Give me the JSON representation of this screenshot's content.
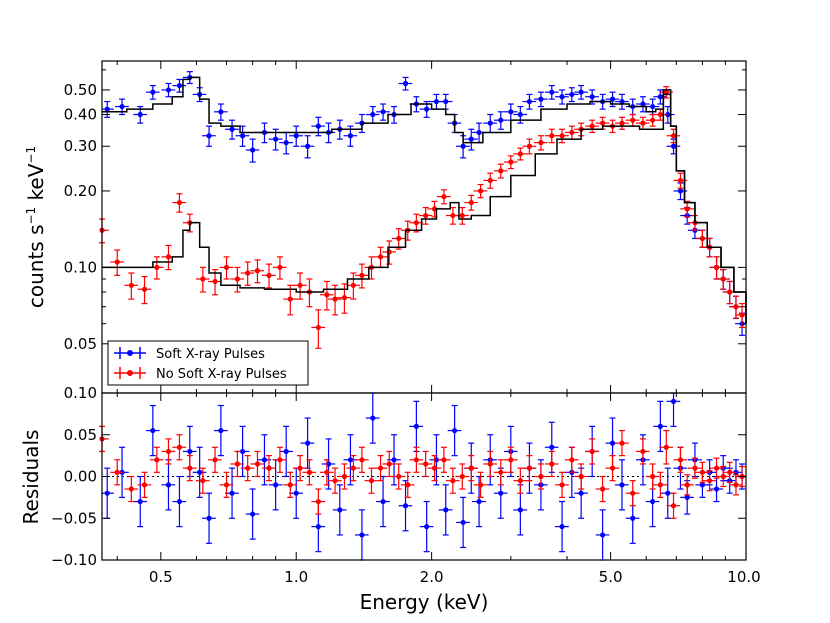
{
  "chart_data": [
    {
      "type": "scatter",
      "panel": "spectrum",
      "title": "",
      "xlabel": "",
      "ylabel": "counts s",
      "ylabel_unit": "keV",
      "ylabel_exponent": "−1",
      "xscale": "log",
      "yscale": "log",
      "xlim": [
        0.37,
        10.0
      ],
      "ylim": [
        0.032,
        0.65
      ],
      "yticks": [
        0.05,
        0.1,
        0.2,
        0.3,
        0.4,
        0.5
      ],
      "ytick_labels": [
        "0.05",
        "0.10",
        "0.20",
        "0.30",
        "0.40",
        "0.50"
      ],
      "legend_position": "lower-left",
      "legend": [
        "Soft X-ray Pulses",
        "No Soft X-ray Pulses"
      ],
      "series": [
        {
          "name": "Soft X-ray Pulses",
          "color": "#0000ff",
          "x": [
            0.38,
            0.41,
            0.45,
            0.48,
            0.52,
            0.55,
            0.58,
            0.61,
            0.64,
            0.68,
            0.72,
            0.76,
            0.8,
            0.85,
            0.9,
            0.95,
            1.0,
            1.06,
            1.12,
            1.18,
            1.25,
            1.32,
            1.4,
            1.48,
            1.56,
            1.65,
            1.75,
            1.85,
            1.95,
            2.05,
            2.15,
            2.25,
            2.35,
            2.45,
            2.55,
            2.7,
            2.85,
            3.0,
            3.15,
            3.3,
            3.5,
            3.7,
            3.9,
            4.1,
            4.3,
            4.55,
            4.8,
            5.05,
            5.3,
            5.6,
            5.9,
            6.2,
            6.45,
            6.7,
            6.9,
            7.15,
            7.4,
            7.7,
            8.0,
            8.3,
            8.6,
            8.9,
            9.2,
            9.5,
            9.8
          ],
          "y": [
            0.42,
            0.43,
            0.4,
            0.49,
            0.5,
            0.52,
            0.56,
            0.48,
            0.33,
            0.41,
            0.35,
            0.33,
            0.29,
            0.34,
            0.32,
            0.31,
            0.33,
            0.3,
            0.36,
            0.34,
            0.35,
            0.33,
            0.37,
            0.4,
            0.41,
            0.4,
            0.53,
            0.44,
            0.42,
            0.45,
            0.45,
            0.37,
            0.3,
            0.32,
            0.34,
            0.37,
            0.38,
            0.41,
            0.4,
            0.45,
            0.46,
            0.49,
            0.47,
            0.48,
            0.49,
            0.47,
            0.45,
            0.46,
            0.45,
            0.43,
            0.44,
            0.43,
            0.47,
            0.4,
            0.3,
            0.2,
            0.16,
            0.14,
            0.13,
            0.12,
            0.1,
            0.09,
            0.08,
            0.07,
            0.06
          ],
          "yerr": [
            0.03,
            0.03,
            0.03,
            0.03,
            0.03,
            0.03,
            0.03,
            0.03,
            0.03,
            0.03,
            0.03,
            0.03,
            0.03,
            0.03,
            0.03,
            0.03,
            0.03,
            0.03,
            0.03,
            0.03,
            0.03,
            0.03,
            0.03,
            0.03,
            0.03,
            0.03,
            0.03,
            0.03,
            0.03,
            0.03,
            0.03,
            0.03,
            0.03,
            0.03,
            0.03,
            0.03,
            0.03,
            0.03,
            0.03,
            0.03,
            0.03,
            0.03,
            0.03,
            0.03,
            0.03,
            0.03,
            0.03,
            0.03,
            0.03,
            0.03,
            0.03,
            0.03,
            0.03,
            0.03,
            0.02,
            0.015,
            0.012,
            0.01,
            0.01,
            0.01,
            0.01,
            0.008,
            0.008,
            0.007,
            0.006
          ]
        },
        {
          "name": "No Soft X-ray Pulses",
          "color": "#ff0000",
          "x": [
            0.37,
            0.4,
            0.43,
            0.46,
            0.49,
            0.52,
            0.55,
            0.58,
            0.62,
            0.66,
            0.7,
            0.74,
            0.78,
            0.82,
            0.87,
            0.92,
            0.97,
            1.02,
            1.07,
            1.12,
            1.17,
            1.22,
            1.28,
            1.34,
            1.4,
            1.47,
            1.54,
            1.61,
            1.69,
            1.77,
            1.85,
            1.94,
            2.03,
            2.13,
            2.23,
            2.34,
            2.45,
            2.57,
            2.7,
            2.85,
            3.0,
            3.15,
            3.3,
            3.5,
            3.7,
            3.9,
            4.1,
            4.3,
            4.55,
            4.8,
            5.05,
            5.3,
            5.6,
            5.9,
            6.2,
            6.45,
            6.65,
            6.9,
            7.15,
            7.4,
            7.7,
            8.0,
            8.3,
            8.6,
            8.9,
            9.2,
            9.5,
            9.8
          ],
          "y": [
            0.14,
            0.105,
            0.085,
            0.082,
            0.1,
            0.11,
            0.18,
            0.15,
            0.09,
            0.088,
            0.1,
            0.09,
            0.095,
            0.097,
            0.093,
            0.1,
            0.075,
            0.085,
            0.08,
            0.058,
            0.078,
            0.075,
            0.076,
            0.085,
            0.093,
            0.1,
            0.11,
            0.115,
            0.13,
            0.14,
            0.15,
            0.16,
            0.17,
            0.19,
            0.16,
            0.16,
            0.18,
            0.2,
            0.22,
            0.24,
            0.26,
            0.28,
            0.3,
            0.31,
            0.33,
            0.33,
            0.34,
            0.35,
            0.36,
            0.37,
            0.36,
            0.37,
            0.38,
            0.37,
            0.38,
            0.4,
            0.49,
            0.33,
            0.22,
            0.17,
            0.15,
            0.13,
            0.12,
            0.1,
            0.09,
            0.08,
            0.07,
            0.065
          ],
          "yerr": [
            0.015,
            0.012,
            0.01,
            0.01,
            0.01,
            0.012,
            0.015,
            0.012,
            0.01,
            0.01,
            0.01,
            0.01,
            0.01,
            0.01,
            0.01,
            0.01,
            0.01,
            0.01,
            0.01,
            0.01,
            0.01,
            0.01,
            0.01,
            0.01,
            0.01,
            0.01,
            0.01,
            0.012,
            0.012,
            0.012,
            0.012,
            0.012,
            0.012,
            0.012,
            0.012,
            0.012,
            0.012,
            0.012,
            0.015,
            0.015,
            0.015,
            0.015,
            0.02,
            0.02,
            0.02,
            0.02,
            0.02,
            0.02,
            0.02,
            0.02,
            0.02,
            0.02,
            0.02,
            0.02,
            0.02,
            0.02,
            0.025,
            0.02,
            0.015,
            0.012,
            0.01,
            0.01,
            0.01,
            0.01,
            0.008,
            0.008,
            0.007,
            0.007
          ]
        },
        {
          "name": "model (Soft X-ray Pulses)",
          "color": "#000000",
          "style": "line",
          "x": [
            0.37,
            0.42,
            0.48,
            0.53,
            0.56,
            0.58,
            0.61,
            0.64,
            0.68,
            0.75,
            0.85,
            1.0,
            1.2,
            1.4,
            1.6,
            1.8,
            2.0,
            2.15,
            2.25,
            2.35,
            2.6,
            3.0,
            3.5,
            4.0,
            4.5,
            5.0,
            5.5,
            6.0,
            6.3,
            6.55,
            6.8,
            7.0,
            7.3,
            7.7,
            8.2,
            8.8,
            9.4,
            10.0
          ],
          "y": [
            0.41,
            0.42,
            0.44,
            0.47,
            0.55,
            0.56,
            0.46,
            0.37,
            0.36,
            0.34,
            0.34,
            0.34,
            0.35,
            0.37,
            0.4,
            0.44,
            0.42,
            0.4,
            0.34,
            0.31,
            0.34,
            0.38,
            0.42,
            0.44,
            0.45,
            0.44,
            0.43,
            0.41,
            0.42,
            0.5,
            0.36,
            0.24,
            0.18,
            0.15,
            0.12,
            0.1,
            0.08,
            0.06
          ]
        },
        {
          "name": "model (No Soft X-ray Pulses)",
          "color": "#000000",
          "style": "line",
          "x": [
            0.37,
            0.42,
            0.48,
            0.53,
            0.56,
            0.58,
            0.61,
            0.64,
            0.68,
            0.75,
            0.85,
            1.0,
            1.15,
            1.3,
            1.45,
            1.6,
            1.75,
            1.9,
            2.05,
            2.2,
            2.3,
            2.45,
            2.7,
            3.0,
            3.4,
            3.8,
            4.3,
            4.8,
            5.3,
            5.8,
            6.2,
            6.55,
            6.8,
            7.0,
            7.3,
            7.7,
            8.2,
            8.8,
            9.4,
            10.0
          ],
          "y": [
            0.1,
            0.1,
            0.105,
            0.11,
            0.14,
            0.15,
            0.12,
            0.095,
            0.085,
            0.083,
            0.082,
            0.08,
            0.082,
            0.09,
            0.1,
            0.12,
            0.14,
            0.155,
            0.17,
            0.18,
            0.155,
            0.16,
            0.19,
            0.23,
            0.28,
            0.32,
            0.35,
            0.36,
            0.36,
            0.35,
            0.35,
            0.48,
            0.36,
            0.24,
            0.18,
            0.15,
            0.12,
            0.1,
            0.08,
            0.06
          ]
        }
      ]
    },
    {
      "type": "scatter",
      "panel": "residuals",
      "title": "",
      "xlabel": "Energy (keV)",
      "ylabel": "Residuals",
      "xscale": "log",
      "xlim": [
        0.37,
        10.0
      ],
      "ylim": [
        -0.1,
        0.1
      ],
      "xticks": [
        0.5,
        1.0,
        2.0,
        5.0,
        10.0
      ],
      "xtick_labels": [
        "0.5",
        "1.0",
        "2.0",
        "5.0",
        "10.0"
      ],
      "yticks": [
        -0.1,
        -0.05,
        0.0,
        0.05,
        0.1
      ],
      "ytick_labels": [
        "−0.10",
        "−0.05",
        "0.00",
        "0.05",
        "0.10"
      ],
      "zero_line": 0,
      "series": [
        {
          "name": "Soft X-ray Pulses",
          "color": "#0000ff",
          "x": [
            0.38,
            0.41,
            0.45,
            0.48,
            0.52,
            0.55,
            0.58,
            0.61,
            0.64,
            0.68,
            0.72,
            0.76,
            0.8,
            0.85,
            0.9,
            0.95,
            1.0,
            1.06,
            1.12,
            1.18,
            1.25,
            1.32,
            1.4,
            1.48,
            1.56,
            1.65,
            1.75,
            1.85,
            1.95,
            2.05,
            2.15,
            2.25,
            2.35,
            2.45,
            2.55,
            2.7,
            2.85,
            3.0,
            3.15,
            3.3,
            3.5,
            3.7,
            3.9,
            4.1,
            4.3,
            4.55,
            4.8,
            5.05,
            5.3,
            5.6,
            5.9,
            6.2,
            6.45,
            6.7,
            6.9,
            7.15,
            7.4,
            7.7,
            8.0,
            8.3,
            8.6,
            8.9,
            9.2,
            9.5,
            9.8
          ],
          "y": [
            -0.02,
            0.005,
            -0.03,
            0.055,
            -0.01,
            -0.03,
            0.03,
            0.005,
            -0.05,
            0.055,
            -0.02,
            0.03,
            -0.045,
            0.02,
            -0.01,
            0.03,
            -0.02,
            0.04,
            -0.06,
            0.015,
            -0.04,
            0.02,
            -0.07,
            0.07,
            -0.03,
            0.02,
            -0.035,
            0.06,
            -0.06,
            0.02,
            -0.04,
            0.055,
            -0.055,
            0.01,
            -0.03,
            0.02,
            -0.02,
            0.03,
            -0.04,
            0.01,
            -0.01,
            0.035,
            -0.06,
            0.005,
            -0.02,
            0.03,
            -0.07,
            0.04,
            -0.01,
            -0.05,
            0.02,
            -0.03,
            0.06,
            -0.02,
            0.09,
            0.01,
            -0.025,
            0.02,
            -0.01,
            0.005,
            -0.015,
            0.01,
            -0.005,
            0.005,
            0.0
          ],
          "yerr": [
            0.03,
            0.03,
            0.03,
            0.03,
            0.03,
            0.03,
            0.03,
            0.03,
            0.03,
            0.03,
            0.03,
            0.03,
            0.03,
            0.03,
            0.03,
            0.03,
            0.03,
            0.03,
            0.03,
            0.03,
            0.03,
            0.03,
            0.03,
            0.03,
            0.03,
            0.03,
            0.03,
            0.03,
            0.03,
            0.03,
            0.03,
            0.03,
            0.03,
            0.03,
            0.03,
            0.03,
            0.03,
            0.03,
            0.03,
            0.03,
            0.03,
            0.03,
            0.03,
            0.03,
            0.03,
            0.03,
            0.03,
            0.03,
            0.03,
            0.03,
            0.03,
            0.03,
            0.03,
            0.03,
            0.03,
            0.025,
            0.02,
            0.02,
            0.015,
            0.015,
            0.015,
            0.015,
            0.015,
            0.015,
            0.015
          ]
        },
        {
          "name": "No Soft X-ray Pulses",
          "color": "#ff0000",
          "x": [
            0.37,
            0.4,
            0.43,
            0.46,
            0.49,
            0.52,
            0.55,
            0.58,
            0.62,
            0.66,
            0.7,
            0.74,
            0.78,
            0.82,
            0.87,
            0.92,
            0.97,
            1.02,
            1.07,
            1.12,
            1.17,
            1.22,
            1.28,
            1.34,
            1.4,
            1.47,
            1.54,
            1.61,
            1.69,
            1.77,
            1.85,
            1.94,
            2.03,
            2.13,
            2.23,
            2.34,
            2.45,
            2.57,
            2.7,
            2.85,
            3.0,
            3.15,
            3.3,
            3.5,
            3.7,
            3.9,
            4.1,
            4.3,
            4.55,
            4.8,
            5.05,
            5.3,
            5.6,
            5.9,
            6.2,
            6.45,
            6.65,
            6.9,
            7.15,
            7.4,
            7.7,
            8.0,
            8.3,
            8.6,
            8.9,
            9.2,
            9.5,
            9.8
          ],
          "y": [
            0.045,
            0.005,
            -0.015,
            -0.01,
            0.02,
            0.03,
            0.035,
            0.01,
            -0.005,
            0.02,
            -0.01,
            0.015,
            0.01,
            0.015,
            0.01,
            0.02,
            -0.01,
            0.01,
            0.005,
            -0.03,
            0.005,
            -0.005,
            0.0,
            0.01,
            0.02,
            -0.005,
            0.01,
            0.015,
            0.0,
            -0.01,
            0.02,
            0.015,
            0.01,
            0.02,
            -0.005,
            0.0,
            0.01,
            -0.01,
            0.015,
            0.005,
            0.02,
            -0.005,
            0.01,
            0.0,
            0.015,
            -0.01,
            0.02,
            0.0,
            0.03,
            -0.015,
            0.01,
            0.04,
            -0.02,
            0.03,
            0.0,
            -0.01,
            0.035,
            -0.035,
            0.02,
            -0.01,
            0.01,
            0.005,
            -0.005,
            0.01,
            0.0,
            0.005,
            -0.01,
            0.0
          ],
          "yerr": [
            0.015,
            0.015,
            0.015,
            0.015,
            0.015,
            0.015,
            0.015,
            0.015,
            0.015,
            0.015,
            0.015,
            0.015,
            0.015,
            0.015,
            0.015,
            0.015,
            0.015,
            0.015,
            0.015,
            0.015,
            0.015,
            0.015,
            0.015,
            0.015,
            0.015,
            0.015,
            0.015,
            0.015,
            0.015,
            0.015,
            0.015,
            0.015,
            0.015,
            0.015,
            0.015,
            0.015,
            0.015,
            0.015,
            0.015,
            0.015,
            0.015,
            0.015,
            0.015,
            0.015,
            0.015,
            0.015,
            0.015,
            0.015,
            0.015,
            0.015,
            0.015,
            0.015,
            0.015,
            0.015,
            0.015,
            0.015,
            0.02,
            0.015,
            0.015,
            0.012,
            0.012,
            0.012,
            0.012,
            0.012,
            0.012,
            0.012,
            0.012,
            0.012
          ]
        }
      ]
    }
  ]
}
